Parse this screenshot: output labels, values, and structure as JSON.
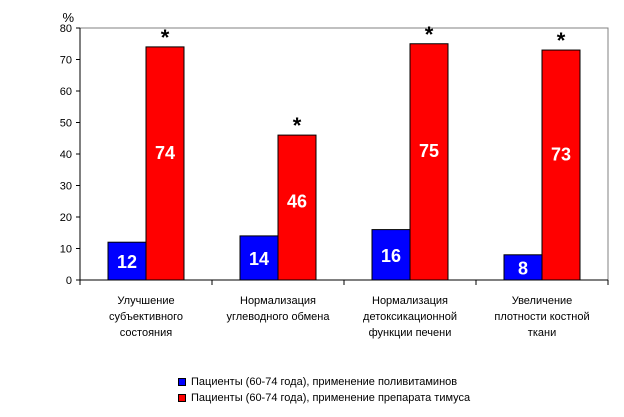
{
  "chart_data": {
    "type": "bar",
    "ylabel": "%",
    "ylim": [
      0,
      80
    ],
    "ytick_step": 10,
    "grid": false,
    "legend_position": "bottom",
    "categories": [
      [
        "Улучшение",
        "субъективного",
        "состояния"
      ],
      [
        "Нормализация",
        "углеводного обмена"
      ],
      [
        "Нормализация",
        "детоксикационной",
        "функции печени"
      ],
      [
        "Увеличение",
        "плотности костной",
        "ткани"
      ]
    ],
    "series": [
      {
        "name": "Пациенты (60-74 года), применение поливитаминов",
        "color": "#0000ff",
        "values": [
          12,
          14,
          16,
          8
        ]
      },
      {
        "name": "Пациенты (60-74 года), применение препарата тимуса",
        "color": "#ff0000",
        "values": [
          74,
          46,
          75,
          73
        ]
      }
    ],
    "significance_marker": "*"
  }
}
